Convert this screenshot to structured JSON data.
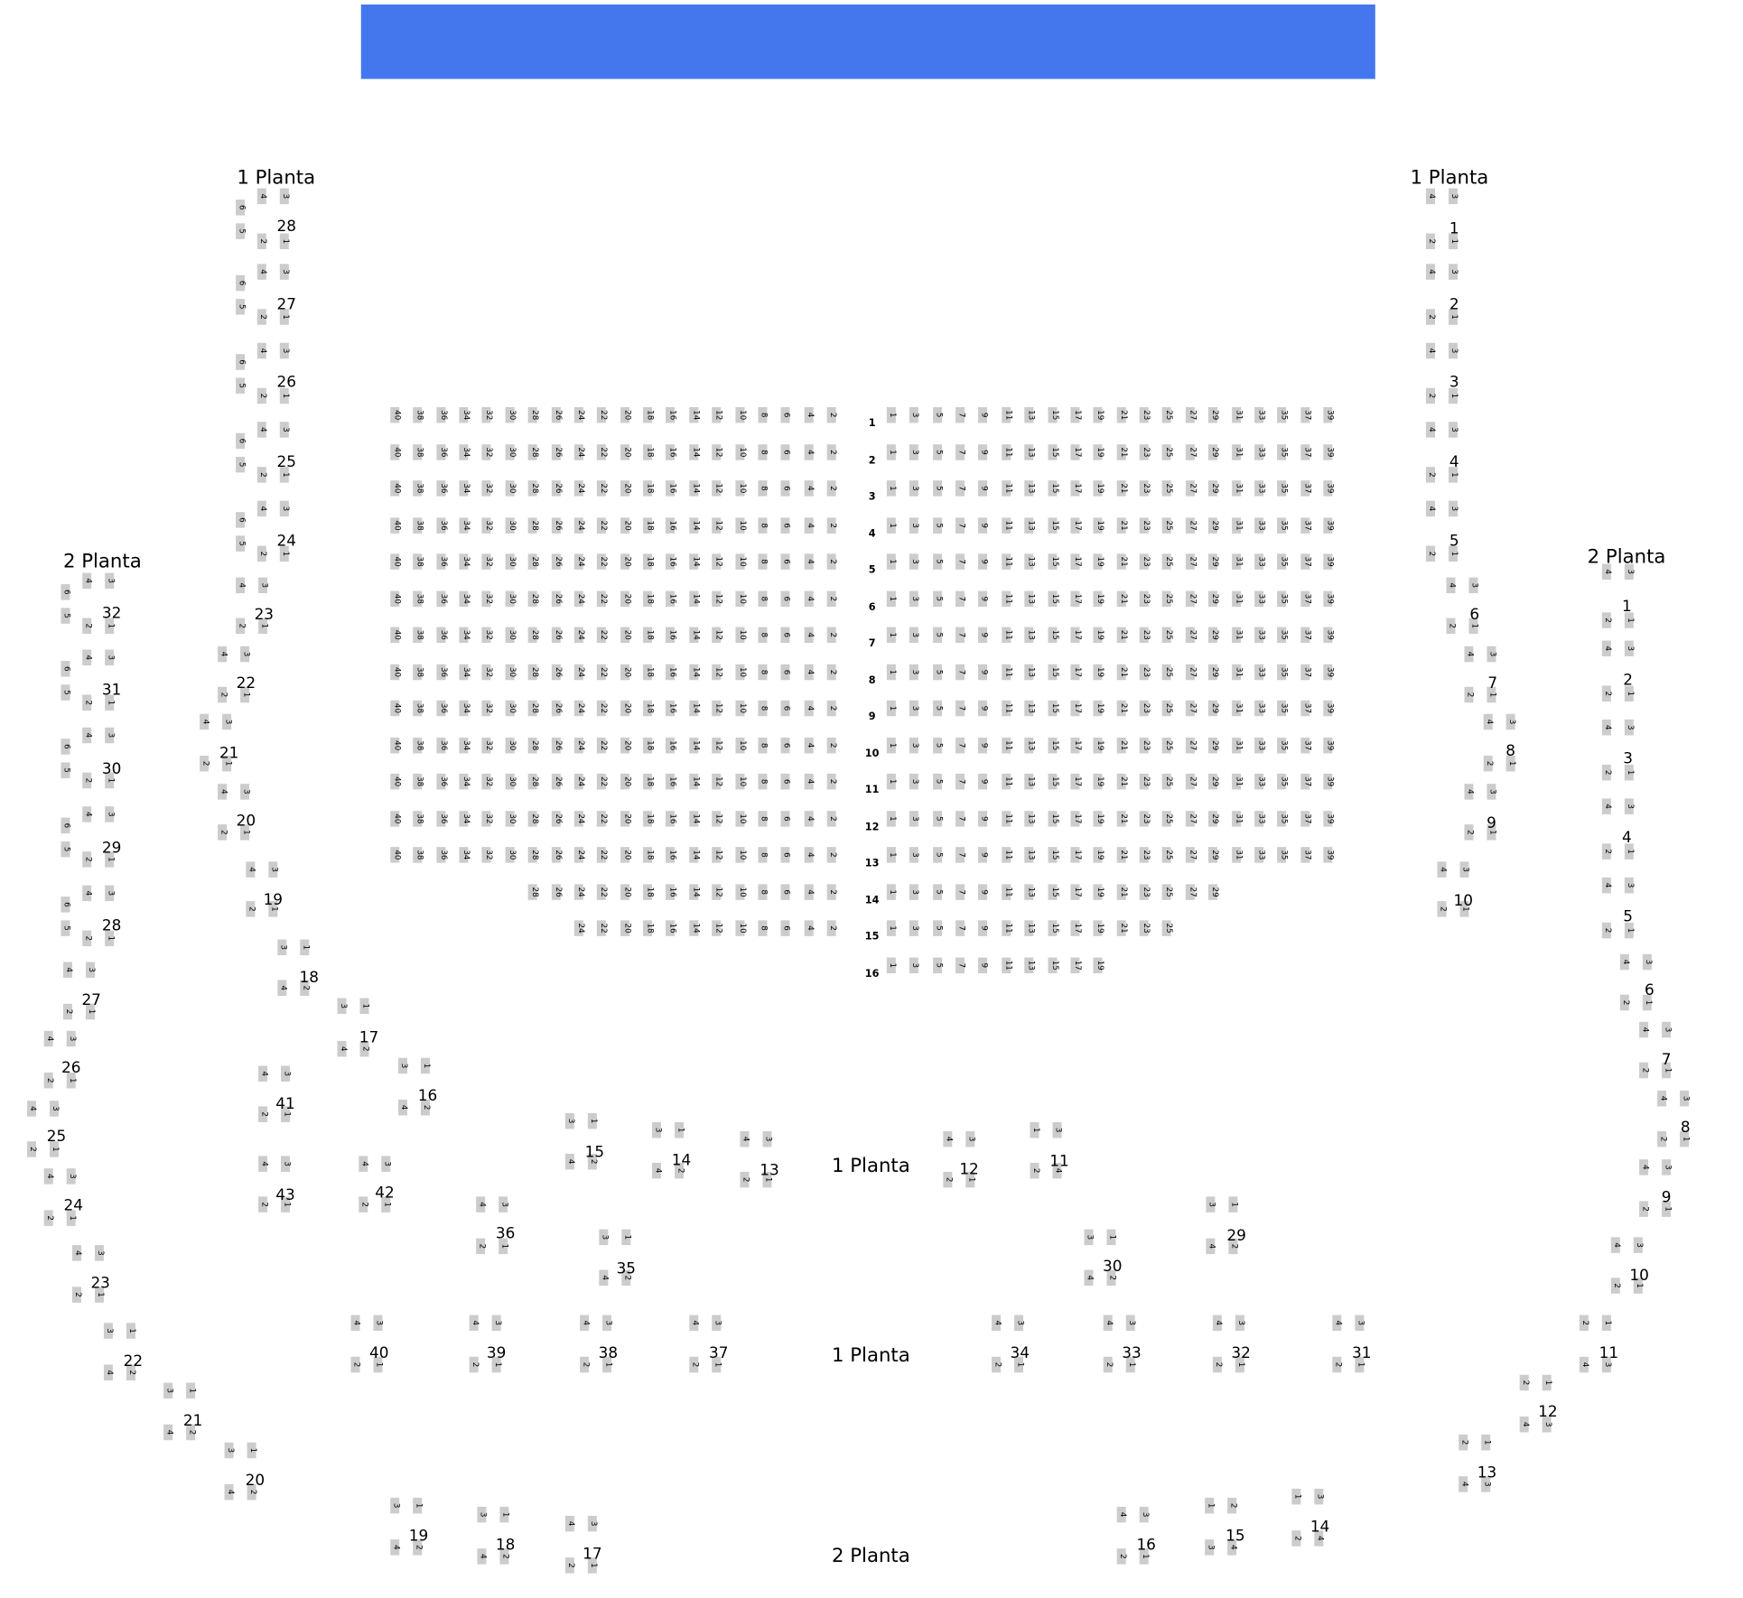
{
  "stage": {
    "color": "#4477ee"
  },
  "seat_color": "#cccccc",
  "titles": [
    "1 Planta",
    "1 Planta",
    "2 Planta",
    "2 Planta",
    "1 Planta",
    "1 Planta",
    "2 Planta"
  ],
  "main_rows": [
    {
      "label": "1",
      "left": [
        40,
        38,
        36,
        34,
        32,
        30,
        28,
        26,
        24,
        22,
        20,
        18,
        16,
        14,
        12,
        10,
        8,
        6,
        4,
        2
      ],
      "right": [
        1,
        3,
        5,
        7,
        9,
        11,
        13,
        15,
        17,
        19,
        21,
        23,
        25,
        27,
        29,
        31,
        33,
        35,
        37,
        39
      ]
    },
    {
      "label": "2",
      "left": [
        40,
        38,
        36,
        34,
        32,
        30,
        28,
        26,
        24,
        22,
        20,
        18,
        16,
        14,
        12,
        10,
        8,
        6,
        4,
        2
      ],
      "right": [
        1,
        3,
        5,
        7,
        9,
        11,
        13,
        15,
        17,
        19,
        21,
        23,
        25,
        27,
        29,
        31,
        33,
        35,
        37,
        39
      ]
    },
    {
      "label": "3",
      "left": [
        40,
        38,
        36,
        34,
        32,
        30,
        28,
        26,
        24,
        22,
        20,
        18,
        16,
        14,
        12,
        10,
        8,
        6,
        4,
        2
      ],
      "right": [
        1,
        3,
        5,
        7,
        9,
        11,
        13,
        15,
        17,
        19,
        21,
        23,
        25,
        27,
        29,
        31,
        33,
        35,
        37,
        39
      ]
    },
    {
      "label": "4",
      "left": [
        40,
        38,
        36,
        34,
        32,
        30,
        28,
        26,
        24,
        22,
        20,
        18,
        16,
        14,
        12,
        10,
        8,
        6,
        4,
        2
      ],
      "right": [
        1,
        3,
        5,
        7,
        9,
        11,
        13,
        15,
        17,
        19,
        21,
        23,
        25,
        27,
        29,
        31,
        33,
        35,
        37,
        39
      ]
    },
    {
      "label": "5",
      "left": [
        40,
        38,
        36,
        34,
        32,
        30,
        28,
        26,
        24,
        22,
        20,
        18,
        16,
        14,
        12,
        10,
        8,
        6,
        4,
        2
      ],
      "right": [
        1,
        3,
        5,
        7,
        9,
        11,
        13,
        15,
        17,
        19,
        21,
        23,
        25,
        27,
        29,
        31,
        33,
        35,
        37,
        39
      ]
    },
    {
      "label": "6",
      "left": [
        40,
        38,
        36,
        34,
        32,
        30,
        28,
        26,
        24,
        22,
        20,
        18,
        16,
        14,
        12,
        10,
        8,
        6,
        4,
        2
      ],
      "right": [
        1,
        3,
        5,
        7,
        9,
        11,
        13,
        15,
        17,
        19,
        21,
        23,
        25,
        27,
        29,
        31,
        33,
        35,
        37,
        39
      ]
    },
    {
      "label": "7",
      "left": [
        40,
        38,
        36,
        34,
        32,
        30,
        28,
        26,
        24,
        22,
        20,
        18,
        16,
        14,
        12,
        10,
        8,
        6,
        4,
        2
      ],
      "right": [
        1,
        3,
        5,
        7,
        9,
        11,
        13,
        15,
        17,
        19,
        21,
        23,
        25,
        27,
        29,
        31,
        33,
        35,
        37,
        39
      ]
    },
    {
      "label": "8",
      "left": [
        40,
        38,
        36,
        34,
        32,
        30,
        28,
        26,
        24,
        22,
        20,
        18,
        16,
        14,
        12,
        10,
        8,
        6,
        4,
        2
      ],
      "right": [
        1,
        3,
        5,
        7,
        9,
        11,
        13,
        15,
        17,
        19,
        21,
        23,
        25,
        27,
        29,
        31,
        33,
        35,
        37,
        39
      ]
    },
    {
      "label": "9",
      "left": [
        40,
        38,
        36,
        34,
        32,
        30,
        28,
        26,
        24,
        22,
        20,
        18,
        16,
        14,
        12,
        10,
        8,
        6,
        4,
        2
      ],
      "right": [
        1,
        3,
        5,
        7,
        9,
        11,
        13,
        15,
        17,
        19,
        21,
        23,
        25,
        27,
        29,
        31,
        33,
        35,
        37,
        39
      ]
    },
    {
      "label": "10",
      "left": [
        40,
        38,
        36,
        34,
        32,
        30,
        28,
        26,
        24,
        22,
        20,
        18,
        16,
        14,
        12,
        10,
        8,
        6,
        4,
        2
      ],
      "right": [
        1,
        3,
        5,
        7,
        9,
        11,
        13,
        15,
        17,
        19,
        21,
        23,
        25,
        27,
        29,
        31,
        33,
        35,
        37,
        39
      ]
    },
    {
      "label": "11",
      "left": [
        40,
        38,
        36,
        34,
        32,
        30,
        28,
        26,
        24,
        22,
        20,
        18,
        16,
        14,
        12,
        10,
        8,
        6,
        4,
        2
      ],
      "right": [
        1,
        3,
        5,
        7,
        9,
        11,
        13,
        15,
        17,
        19,
        21,
        23,
        25,
        27,
        29,
        31,
        33,
        35,
        37,
        39
      ]
    },
    {
      "label": "12",
      "left": [
        40,
        38,
        36,
        34,
        32,
        30,
        28,
        26,
        24,
        22,
        20,
        18,
        16,
        14,
        12,
        10,
        8,
        6,
        4,
        2
      ],
      "right": [
        1,
        3,
        5,
        7,
        9,
        11,
        13,
        15,
        17,
        19,
        21,
        23,
        25,
        27,
        29,
        31,
        33,
        35,
        37,
        39
      ]
    },
    {
      "label": "13",
      "left": [
        40,
        38,
        36,
        34,
        32,
        30,
        28,
        26,
        24,
        22,
        20,
        18,
        16,
        14,
        12,
        10,
        8,
        6,
        4,
        2
      ],
      "right": [
        1,
        3,
        5,
        7,
        9,
        11,
        13,
        15,
        17,
        19,
        21,
        23,
        25,
        27,
        29,
        31,
        33,
        35,
        37,
        39
      ]
    },
    {
      "label": "14",
      "left": [
        28,
        26,
        24,
        22,
        20,
        18,
        16,
        14,
        12,
        10,
        8,
        6,
        4,
        2
      ],
      "right": [
        1,
        3,
        5,
        7,
        9,
        11,
        13,
        15,
        17,
        19,
        21,
        23,
        25,
        27,
        29
      ]
    },
    {
      "label": "15",
      "left": [
        24,
        22,
        20,
        18,
        16,
        14,
        12,
        10,
        8,
        6,
        4,
        2
      ],
      "right": [
        1,
        3,
        5,
        7,
        9,
        11,
        13,
        15,
        17,
        19,
        21,
        23,
        25
      ]
    },
    {
      "label": "16",
      "left": [],
      "right": [
        1,
        3,
        5,
        7,
        9,
        11,
        13,
        15,
        17,
        19
      ]
    }
  ],
  "boxes": [
    {
      "label": "28",
      "seats": [
        "4",
        "3",
        "2",
        "1",
        "6",
        "5"
      ]
    },
    {
      "label": "27",
      "seats": [
        "4",
        "3",
        "2",
        "1",
        "6",
        "5"
      ]
    },
    {
      "label": "26",
      "seats": [
        "4",
        "3",
        "2",
        "1",
        "6",
        "5"
      ]
    },
    {
      "label": "25",
      "seats": [
        "4",
        "3",
        "2",
        "1",
        "6",
        "5"
      ]
    },
    {
      "label": "24",
      "seats": [
        "4",
        "3",
        "2",
        "1",
        "6",
        "5"
      ]
    },
    {
      "label": "23",
      "seats": [
        "4",
        "3",
        "2",
        "1"
      ]
    },
    {
      "label": "22",
      "seats": [
        "4",
        "3",
        "2",
        "1"
      ]
    },
    {
      "label": "21",
      "seats": [
        "4",
        "3",
        "2",
        "1"
      ]
    },
    {
      "label": "20",
      "seats": [
        "4",
        "3",
        "2",
        "1"
      ]
    },
    {
      "label": "19",
      "seats": [
        "4",
        "3",
        "2",
        "1"
      ]
    },
    {
      "label": "18",
      "seats": [
        "3",
        "1",
        "4",
        "2"
      ]
    },
    {
      "label": "17",
      "seats": [
        "3",
        "1",
        "4",
        "2"
      ]
    },
    {
      "label": "16",
      "seats": [
        "3",
        "1",
        "4",
        "2"
      ]
    },
    {
      "label": "15",
      "seats": [
        "3",
        "1",
        "4",
        "2"
      ]
    },
    {
      "label": "14",
      "seats": [
        "3",
        "1",
        "4",
        "2"
      ]
    },
    {
      "label": "13",
      "seats": [
        "4",
        "3",
        "2",
        "1"
      ]
    },
    {
      "label": "12",
      "seats": [
        "4",
        "3",
        "2",
        "1"
      ]
    },
    {
      "label": "11",
      "seats": [
        "1",
        "3",
        "2",
        "4"
      ]
    },
    {
      "label": "41",
      "seats": [
        "4",
        "3",
        "2",
        "1"
      ]
    },
    {
      "label": "43",
      "seats": [
        "4",
        "3",
        "2",
        "1"
      ]
    },
    {
      "label": "42",
      "seats": [
        "4",
        "3",
        "2",
        "1"
      ]
    },
    {
      "label": "36",
      "seats": [
        "4",
        "3",
        "2",
        "1"
      ]
    },
    {
      "label": "35",
      "seats": [
        "3",
        "1",
        "4",
        "2"
      ]
    },
    {
      "label": "30",
      "seats": [
        "3",
        "1",
        "4",
        "2"
      ]
    },
    {
      "label": "29",
      "seats": [
        "3",
        "1",
        "4",
        "2"
      ]
    },
    {
      "label": "40",
      "seats": [
        "4",
        "3",
        "2",
        "1"
      ]
    },
    {
      "label": "39",
      "seats": [
        "4",
        "3",
        "2",
        "1"
      ]
    },
    {
      "label": "38",
      "seats": [
        "4",
        "3",
        "2",
        "1"
      ]
    },
    {
      "label": "37",
      "seats": [
        "4",
        "3",
        "2",
        "1"
      ]
    },
    {
      "label": "34",
      "seats": [
        "4",
        "3",
        "2",
        "1"
      ]
    },
    {
      "label": "33",
      "seats": [
        "4",
        "3",
        "2",
        "1"
      ]
    },
    {
      "label": "32",
      "seats": [
        "4",
        "3",
        "2",
        "1"
      ]
    },
    {
      "label": "31",
      "seats": [
        "4",
        "3",
        "2",
        "1"
      ]
    },
    {
      "label": "19",
      "seats": [
        "3",
        "1",
        "4",
        "2"
      ]
    },
    {
      "label": "18",
      "seats": [
        "3",
        "1",
        "4",
        "2"
      ]
    },
    {
      "label": "17",
      "seats": [
        "4",
        "3",
        "2",
        "1"
      ]
    },
    {
      "label": "16",
      "seats": [
        "4",
        "3",
        "2",
        "1"
      ]
    },
    {
      "label": "15",
      "seats": [
        "1",
        "2",
        "3",
        "4"
      ]
    },
    {
      "label": "14",
      "seats": [
        "1",
        "3",
        "2",
        "4"
      ]
    },
    {
      "label": "32",
      "seats": [
        "4",
        "3",
        "2",
        "1",
        "6",
        "5"
      ]
    },
    {
      "label": "31",
      "seats": [
        "4",
        "3",
        "2",
        "1",
        "6",
        "5"
      ]
    },
    {
      "label": "30",
      "seats": [
        "4",
        "3",
        "2",
        "1",
        "6",
        "5"
      ]
    },
    {
      "label": "29",
      "seats": [
        "4",
        "3",
        "2",
        "1",
        "6",
        "5"
      ]
    },
    {
      "label": "28",
      "seats": [
        "4",
        "3",
        "2",
        "1",
        "6",
        "5"
      ]
    },
    {
      "label": "27",
      "seats": [
        "4",
        "3",
        "2",
        "1"
      ]
    },
    {
      "label": "26",
      "seats": [
        "4",
        "3",
        "2",
        "1"
      ]
    },
    {
      "label": "25",
      "seats": [
        "4",
        "3",
        "2",
        "1"
      ]
    },
    {
      "label": "24",
      "seats": [
        "4",
        "3",
        "2",
        "1"
      ]
    },
    {
      "label": "23",
      "seats": [
        "4",
        "3",
        "2",
        "1"
      ]
    },
    {
      "label": "22",
      "seats": [
        "3",
        "1",
        "4",
        "2"
      ]
    },
    {
      "label": "21",
      "seats": [
        "3",
        "1",
        "4",
        "2"
      ]
    },
    {
      "label": "20",
      "seats": [
        "3",
        "1",
        "4",
        "2"
      ]
    },
    {
      "label": "1",
      "seats": [
        "4",
        "3",
        "2",
        "1"
      ]
    },
    {
      "label": "2",
      "seats": [
        "4",
        "3",
        "2",
        "1"
      ]
    },
    {
      "label": "3",
      "seats": [
        "4",
        "3",
        "2",
        "1"
      ]
    },
    {
      "label": "4",
      "seats": [
        "4",
        "3",
        "2",
        "1"
      ]
    },
    {
      "label": "5",
      "seats": [
        "4",
        "3",
        "2",
        "1"
      ]
    },
    {
      "label": "6",
      "seats": [
        "4",
        "3",
        "2",
        "1"
      ]
    },
    {
      "label": "7",
      "seats": [
        "4",
        "3",
        "2",
        "1"
      ]
    },
    {
      "label": "8",
      "seats": [
        "4",
        "3",
        "2",
        "1"
      ]
    },
    {
      "label": "9",
      "seats": [
        "4",
        "3",
        "2",
        "1"
      ]
    },
    {
      "label": "10",
      "seats": [
        "4",
        "3",
        "2",
        "1"
      ]
    },
    {
      "label": "1",
      "seats": [
        "4",
        "3",
        "2",
        "1"
      ]
    },
    {
      "label": "2",
      "seats": [
        "4",
        "3",
        "2",
        "1"
      ]
    },
    {
      "label": "3",
      "seats": [
        "4",
        "3",
        "2",
        "1"
      ]
    },
    {
      "label": "4",
      "seats": [
        "4",
        "3",
        "2",
        "1"
      ]
    },
    {
      "label": "5",
      "seats": [
        "4",
        "3",
        "2",
        "1"
      ]
    },
    {
      "label": "6",
      "seats": [
        "4",
        "3",
        "2",
        "1"
      ]
    },
    {
      "label": "7",
      "seats": [
        "4",
        "3",
        "2",
        "1"
      ]
    },
    {
      "label": "8",
      "seats": [
        "4",
        "3",
        "2",
        "1"
      ]
    },
    {
      "label": "9",
      "seats": [
        "4",
        "3",
        "2",
        "1"
      ]
    },
    {
      "label": "10",
      "seats": [
        "4",
        "3",
        "2",
        "1"
      ]
    },
    {
      "label": "11",
      "seats": [
        "2",
        "1",
        "4",
        "3"
      ]
    },
    {
      "label": "12",
      "seats": [
        "2",
        "1",
        "4",
        "3"
      ]
    },
    {
      "label": "13",
      "seats": [
        "2",
        "1",
        "4",
        "3"
      ]
    }
  ]
}
